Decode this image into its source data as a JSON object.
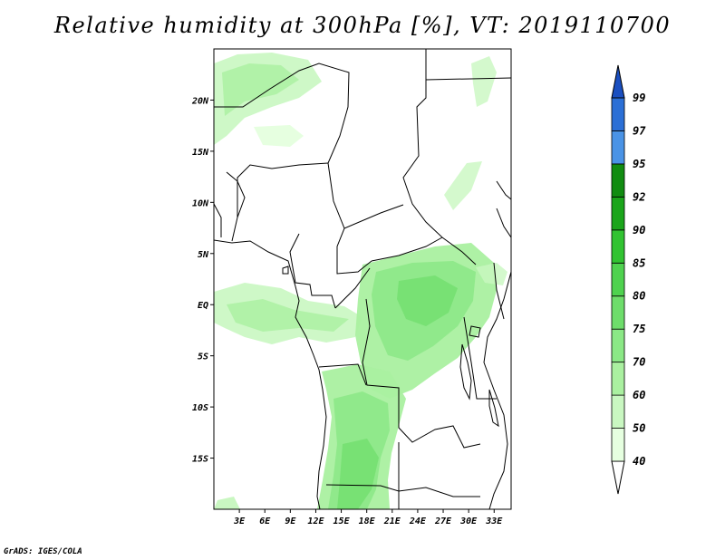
{
  "title": "Relative humidity at 300hPa [%], VT: 2019110700",
  "credit": "GrADS: IGES/COLA",
  "map": {
    "lon_range": [
      0,
      35
    ],
    "lat_range": [
      -20,
      25
    ],
    "x_ticks": [
      "3E",
      "6E",
      "9E",
      "12E",
      "15E",
      "18E",
      "21E",
      "24E",
      "27E",
      "30E",
      "33E"
    ],
    "x_tick_values": [
      3,
      6,
      9,
      12,
      15,
      18,
      21,
      24,
      27,
      30,
      33
    ],
    "y_ticks": [
      "20N",
      "15N",
      "10N",
      "5N",
      "EQ",
      "5S",
      "10S",
      "15S"
    ],
    "y_tick_values": [
      20,
      15,
      10,
      5,
      0,
      -5,
      -10,
      -15
    ]
  },
  "colorbar": {
    "levels": [
      "40",
      "50",
      "60",
      "70",
      "75",
      "80",
      "85",
      "90",
      "92",
      "95",
      "97",
      "99"
    ],
    "colors": [
      "#ffffff",
      "#e6ffe0",
      "#c9f7c1",
      "#aaf0a0",
      "#8be886",
      "#6edd6b",
      "#4fd24f",
      "#31c331",
      "#1aa51a",
      "#118c11",
      "#4a93e6",
      "#2b6fd6",
      "#1a4fc0"
    ]
  }
}
